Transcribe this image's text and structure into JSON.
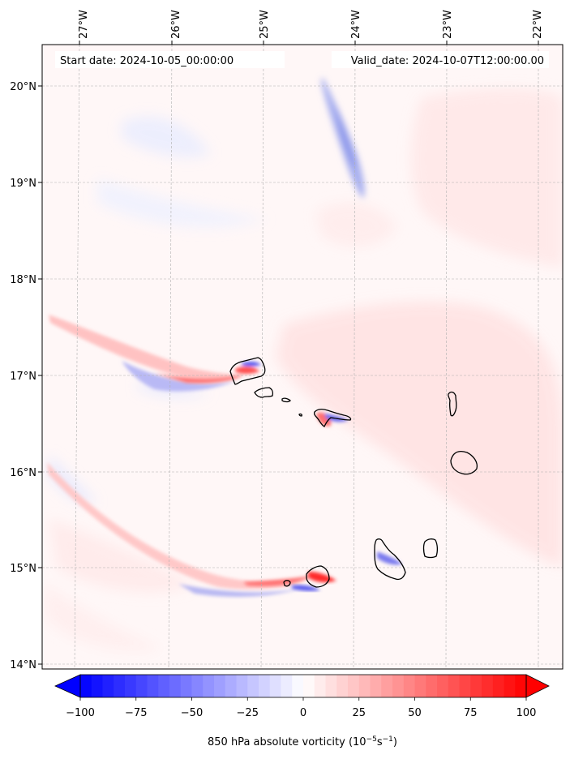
{
  "map": {
    "start_label": "Start date: 2024-10-05_00:00:00",
    "valid_label": "Valid_date: 2024-10-07T12:00:00.00",
    "lon_ticks": [
      "27°W",
      "26°W",
      "25°W",
      "24°W",
      "23°W",
      "22°W"
    ],
    "lat_ticks": [
      "20°N",
      "19°N",
      "18°N",
      "17°N",
      "16°N",
      "15°N",
      "14°N"
    ],
    "extent": {
      "lon_min": -27.3,
      "lon_max": -21.75,
      "lat_min": 13.95,
      "lat_max": 20.4
    },
    "gridlines": true
  },
  "colorbar": {
    "label_main": "850 hPa absolute vorticity (10",
    "label_sup1": "−5",
    "label_mid": "s",
    "label_sup2": "−1",
    "label_end": ")",
    "ticks": [
      "−100",
      "−75",
      "−50",
      "−25",
      "0",
      "25",
      "50",
      "75",
      "100"
    ],
    "range": [
      -100,
      100
    ],
    "colormap": "bwr",
    "colors": {
      "negative": "#0000ff",
      "zero": "#ffffff",
      "positive": "#ff0000"
    }
  }
}
